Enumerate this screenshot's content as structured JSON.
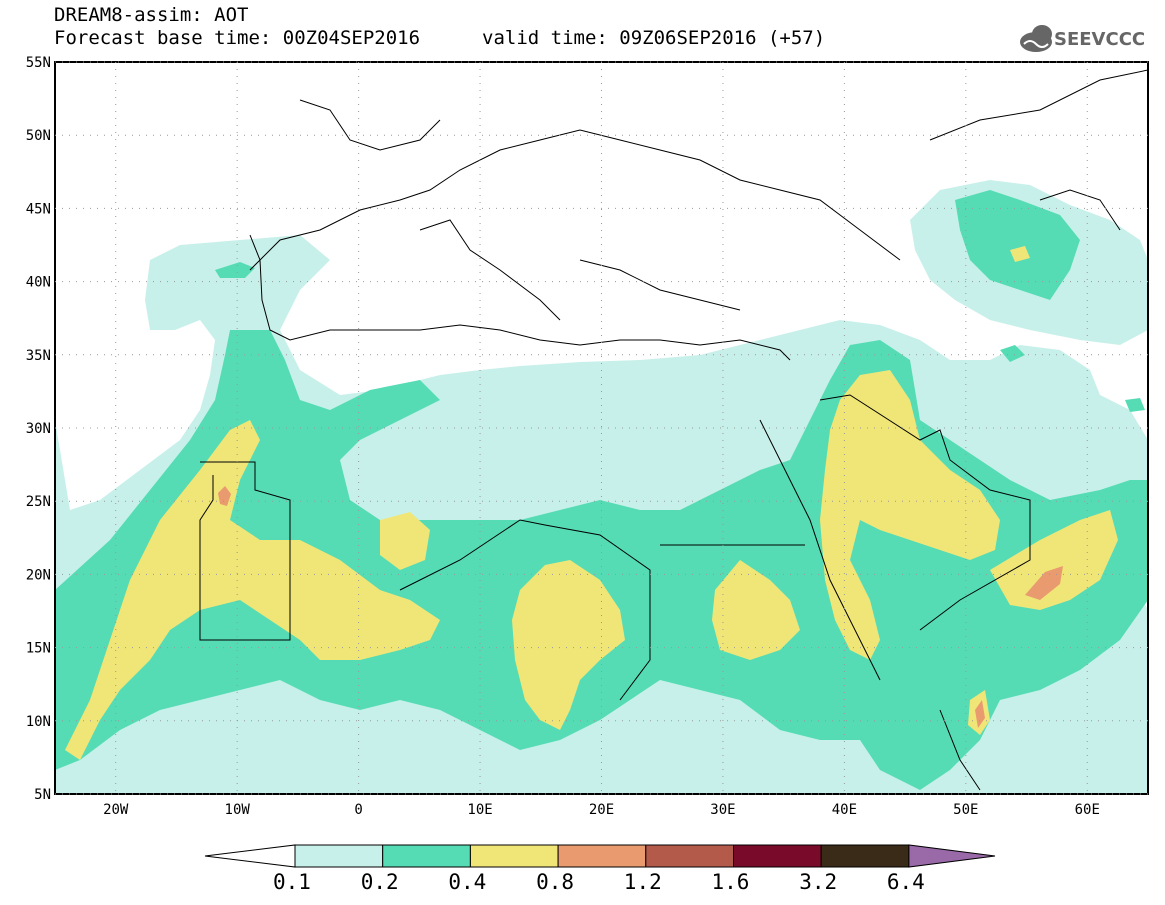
{
  "header": {
    "model_line": "DREAM8-assim: AOT",
    "base_time": "Forecast base time: 00Z04SEP2016",
    "valid_time": "valid time: 09Z06SEP2016 (+57)",
    "logo_text": "SEEVCCC"
  },
  "map": {
    "lat_labels": [
      "55N",
      "50N",
      "45N",
      "40N",
      "35N",
      "30N",
      "25N",
      "20N",
      "15N",
      "10N",
      "5N"
    ],
    "lon_labels": [
      "20W",
      "10W",
      "0",
      "10E",
      "20E",
      "30E",
      "40E",
      "50E",
      "60E"
    ],
    "lat_range": [
      5,
      55
    ],
    "lon_range": [
      -25,
      65
    ]
  },
  "colorbar": {
    "labels": [
      "0.1",
      "0.2",
      "0.4",
      "0.8",
      "1.2",
      "1.6",
      "3.2",
      "6.4"
    ],
    "colors": [
      "#c8f0ea",
      "#55dcb4",
      "#f0e678",
      "#e99a6e",
      "#b35a4b",
      "#7a0a2a",
      "#3a2a18",
      "#9a6aa8"
    ]
  }
}
